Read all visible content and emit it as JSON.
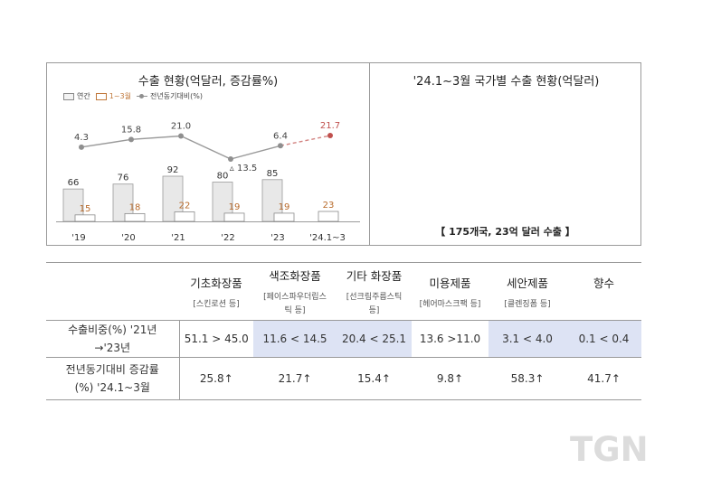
{
  "left_panel": {
    "title": "수출 현황(억달러, 증감률%)",
    "legend": {
      "annual": "연간",
      "q1": "1~3월",
      "yoy": "전년동기대비(%)"
    }
  },
  "chart_data": {
    "type": "bar",
    "categories": [
      "'19",
      "'20",
      "'21",
      "'22",
      "'23",
      "'24.1~3"
    ],
    "series": [
      {
        "name": "연간",
        "values": [
          66,
          76,
          92,
          80,
          85,
          null
        ]
      },
      {
        "name": "1~3월",
        "values": [
          15,
          18,
          22,
          19,
          19,
          23
        ]
      },
      {
        "name": "전년동기대비(%)",
        "values": [
          4.3,
          15.8,
          21.0,
          -13.5,
          6.4,
          21.7
        ]
      }
    ],
    "line_labels": [
      "4.3",
      "15.8",
      "21.0",
      "▵ 13.5",
      "6.4",
      "21.7"
    ],
    "colors": {
      "annual_fill": "#e8e8e8",
      "annual_border": "#9a9a9a",
      "q1_border": "#8a8a8a",
      "q1_label": "#b86a2a",
      "line": "#9a9a9a",
      "highlight": "#c0504d"
    },
    "title": "수출 현황(억달러, 증감률%)"
  },
  "right_panel": {
    "title": "'24.1~3월 국가별 수출 현황(억달러)",
    "summary": "【 175개국, 23억 달러 수출 】"
  },
  "table": {
    "categories": [
      {
        "name": "기초화장품",
        "sub": [
          "[스킨로션 등]"
        ]
      },
      {
        "name": "색조화장품",
        "sub": [
          "[페이스파우더립스",
          "틱 등]"
        ]
      },
      {
        "name": "기타 화장품",
        "sub": [
          "[선크림주름스틱",
          "등]"
        ]
      },
      {
        "name": "미용제품",
        "sub": [
          "[헤어마스크팩 등]"
        ]
      },
      {
        "name": "세안제품",
        "sub": [
          "[클렌징폼 등]"
        ]
      },
      {
        "name": "향수",
        "sub": []
      }
    ],
    "row1": {
      "label": [
        "수출비중(%) '21년",
        "→'23년"
      ],
      "values": [
        "51.1 > 45.0",
        "11.6 < 14.5",
        "20.4 < 25.1",
        "13.6 >11.0",
        "3.1 < 4.0",
        "0.1 < 0.4"
      ]
    },
    "row2": {
      "label": [
        "전년동기대비 증감률",
        "(%) '24.1~3월"
      ],
      "values": [
        "25.8↑",
        "21.7↑",
        "15.4↑",
        "9.8↑",
        "58.3↑",
        "41.7↑"
      ]
    }
  },
  "watermark": "TGN"
}
